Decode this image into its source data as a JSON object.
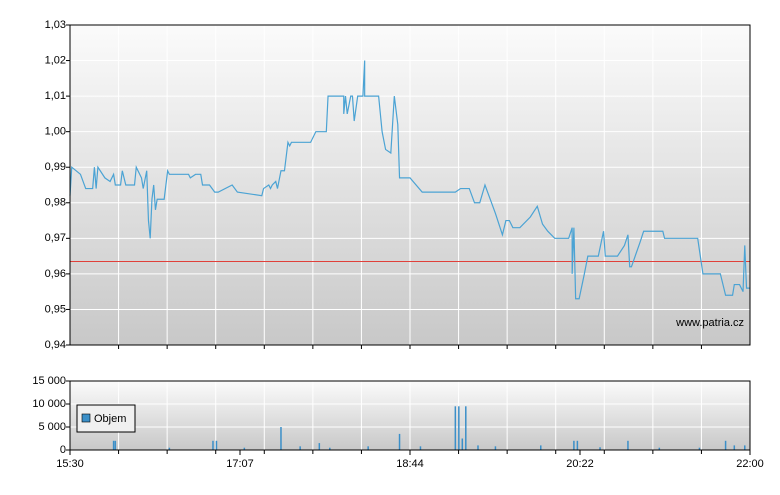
{
  "chart_data": [
    {
      "type": "line",
      "name_watermark": "www.patria.cz",
      "color": "#4ba3d4",
      "reference_line": 0.9635,
      "reference_color": "#e0403a",
      "xlim": [
        930,
        1320
      ],
      "ylim": [
        0.94,
        1.03
      ],
      "yticks": [
        {
          "value": 0.94,
          "label": "0,94"
        },
        {
          "value": 0.95,
          "label": "0,95"
        },
        {
          "value": 0.96,
          "label": "0,96"
        },
        {
          "value": 0.97,
          "label": "0,97"
        },
        {
          "value": 0.98,
          "label": "0,98"
        },
        {
          "value": 0.99,
          "label": "0,99"
        },
        {
          "value": 1.0,
          "label": "1,00"
        },
        {
          "value": 1.01,
          "label": "1,01"
        },
        {
          "value": 1.02,
          "label": "1,02"
        },
        {
          "value": 1.03,
          "label": "1,03"
        }
      ],
      "grid": true,
      "x": [
        930,
        931,
        936,
        939,
        943,
        944,
        945,
        946,
        950,
        953,
        955,
        956,
        959,
        960,
        962,
        967,
        968,
        971,
        972,
        974,
        975,
        976,
        977,
        978,
        979,
        980,
        984,
        986,
        987,
        998,
        999,
        1002,
        1005,
        1006,
        1010,
        1013,
        1015,
        1023,
        1026,
        1040,
        1041,
        1044,
        1045,
        1046,
        1048,
        1049,
        1051,
        1053,
        1055,
        1056,
        1057,
        1068,
        1071,
        1077,
        1078,
        1087,
        1087,
        1088,
        1089,
        1091,
        1092,
        1093,
        1095,
        1096,
        1098,
        1099,
        1099,
        1107,
        1109,
        1111,
        1114,
        1115,
        1116,
        1118,
        1119,
        1125,
        1132,
        1151,
        1154,
        1159,
        1162,
        1165,
        1168,
        1171,
        1174,
        1178,
        1180,
        1182,
        1184,
        1188,
        1194,
        1198,
        1201,
        1204,
        1208,
        1216,
        1218,
        1218,
        1219,
        1220,
        1222,
        1225,
        1227,
        1233,
        1236,
        1237,
        1244,
        1248,
        1250,
        1251,
        1252,
        1257,
        1259,
        1270,
        1271,
        1290,
        1293,
        1303,
        1305,
        1306,
        1310,
        1311,
        1314,
        1316,
        1317,
        1318,
        1320
      ],
      "values": [
        0.982,
        0.99,
        0.988,
        0.984,
        0.984,
        0.99,
        0.984,
        0.99,
        0.987,
        0.986,
        0.988,
        0.985,
        0.985,
        0.989,
        0.985,
        0.985,
        0.99,
        0.987,
        0.984,
        0.989,
        0.975,
        0.97,
        0.981,
        0.985,
        0.978,
        0.981,
        0.981,
        0.989,
        0.988,
        0.988,
        0.987,
        0.988,
        0.988,
        0.985,
        0.985,
        0.983,
        0.983,
        0.985,
        0.983,
        0.982,
        0.984,
        0.985,
        0.984,
        0.985,
        0.986,
        0.984,
        0.989,
        0.989,
        0.997,
        0.996,
        0.997,
        0.997,
        1.0,
        1.0,
        1.01,
        1.01,
        1.005,
        1.01,
        1.005,
        1.01,
        1.01,
        1.003,
        1.01,
        1.01,
        1.01,
        1.02,
        1.01,
        1.01,
        1.0,
        0.995,
        0.994,
        1.002,
        1.01,
        1.002,
        0.987,
        0.987,
        0.983,
        0.983,
        0.984,
        0.984,
        0.98,
        0.98,
        0.985,
        0.981,
        0.977,
        0.971,
        0.975,
        0.975,
        0.973,
        0.973,
        0.976,
        0.979,
        0.974,
        0.972,
        0.97,
        0.97,
        0.973,
        0.96,
        0.973,
        0.953,
        0.953,
        0.96,
        0.965,
        0.965,
        0.972,
        0.965,
        0.965,
        0.968,
        0.971,
        0.962,
        0.962,
        0.969,
        0.972,
        0.972,
        0.97,
        0.97,
        0.96,
        0.96,
        0.956,
        0.954,
        0.954,
        0.957,
        0.957,
        0.955,
        0.968,
        0.956,
        0.956
      ]
    },
    {
      "type": "bar",
      "legend": "Objem",
      "color": "#3b8fc8",
      "xlim": [
        930,
        1320
      ],
      "xticks": [
        {
          "value": 930,
          "label": "15:30"
        },
        {
          "value": 1027.5,
          "label": "17:07"
        },
        {
          "value": 1125,
          "label": "18:44"
        },
        {
          "value": 1222.5,
          "label": "20:22"
        },
        {
          "value": 1320,
          "label": "22:00"
        }
      ],
      "ylim": [
        0,
        15000
      ],
      "yticks": [
        {
          "value": 0,
          "label": "0"
        },
        {
          "value": 5000,
          "label": "5 000"
        },
        {
          "value": 10000,
          "label": "10 000"
        },
        {
          "value": 15000,
          "label": "15 000"
        }
      ],
      "grid": true,
      "x": [
        955,
        956,
        987,
        1012,
        1014,
        1030,
        1051,
        1062,
        1073,
        1079,
        1101,
        1119,
        1131,
        1151,
        1153,
        1155,
        1157,
        1164,
        1174,
        1200,
        1219,
        1221,
        1234,
        1250,
        1268,
        1291,
        1306,
        1311,
        1317
      ],
      "values": [
        2000,
        2000,
        500,
        2000,
        2000,
        500,
        5000,
        800,
        1500,
        500,
        800,
        3500,
        800,
        9500,
        9500,
        2500,
        9500,
        1000,
        800,
        1000,
        2000,
        2000,
        600,
        2000,
        500,
        500,
        2000,
        1000,
        1000
      ]
    }
  ]
}
